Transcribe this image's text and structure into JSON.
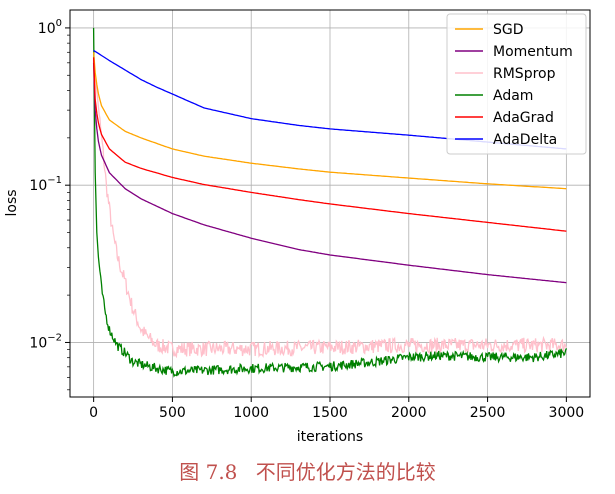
{
  "chart_data": {
    "type": "line",
    "xlabel": "iterations",
    "ylabel": "loss",
    "y_scale": "log",
    "xlim": [
      -150,
      3150
    ],
    "ylim": [
      0.0045,
      1.3
    ],
    "x_ticks": [
      0,
      500,
      1000,
      1500,
      2000,
      2500,
      3000
    ],
    "y_ticks": [
      0.01,
      0.1,
      1
    ],
    "y_tick_labels": [
      {
        "base": "10",
        "exp": "−2"
      },
      {
        "base": "10",
        "exp": "−1"
      },
      {
        "base": "10",
        "exp": "0"
      }
    ],
    "grid": true,
    "legend_position": "top-right",
    "series": [
      {
        "name": "SGD",
        "color": "#ffa500",
        "noise": 0,
        "x": [
          0,
          10,
          25,
          50,
          100,
          200,
          300,
          500,
          700,
          1000,
          1300,
          1500,
          2000,
          2500,
          3000
        ],
        "y": [
          0.7,
          0.52,
          0.4,
          0.32,
          0.26,
          0.22,
          0.2,
          0.17,
          0.153,
          0.138,
          0.127,
          0.121,
          0.111,
          0.102,
          0.095
        ]
      },
      {
        "name": "Momentum",
        "color": "#800080",
        "noise": 0,
        "x": [
          0,
          10,
          25,
          50,
          100,
          200,
          300,
          500,
          700,
          1000,
          1300,
          1500,
          2000,
          2500,
          3000
        ],
        "y": [
          0.6,
          0.3,
          0.2,
          0.155,
          0.12,
          0.095,
          0.082,
          0.066,
          0.056,
          0.046,
          0.039,
          0.036,
          0.031,
          0.027,
          0.024
        ]
      },
      {
        "name": "RMSprop",
        "color": "#ffc0cb",
        "noise": 0.11,
        "x": [
          0,
          20,
          40,
          60,
          80,
          100,
          120,
          150,
          200,
          250,
          300,
          350,
          400,
          500,
          700,
          1000,
          1500,
          2000,
          2500,
          3000
        ],
        "y": [
          0.6,
          0.4,
          0.25,
          0.16,
          0.1,
          0.07,
          0.05,
          0.035,
          0.024,
          0.016,
          0.012,
          0.0105,
          0.0095,
          0.009,
          0.009,
          0.009,
          0.0092,
          0.0095,
          0.0095,
          0.0095
        ]
      },
      {
        "name": "Adam",
        "color": "#008000",
        "noise": 0.07,
        "x": [
          0,
          10,
          20,
          30,
          50,
          70,
          100,
          150,
          200,
          250,
          300,
          400,
          500,
          700,
          1000,
          1500,
          1800,
          2000,
          2200,
          2500,
          2800,
          3000
        ],
        "y": [
          1.0,
          0.12,
          0.05,
          0.035,
          0.022,
          0.016,
          0.012,
          0.0095,
          0.0085,
          0.0075,
          0.0072,
          0.0068,
          0.0065,
          0.0066,
          0.0068,
          0.007,
          0.0075,
          0.008,
          0.0082,
          0.008,
          0.008,
          0.0085
        ]
      },
      {
        "name": "AdaGrad",
        "color": "#ff0000",
        "noise": 0,
        "x": [
          0,
          10,
          25,
          50,
          100,
          200,
          300,
          500,
          700,
          1000,
          1300,
          1500,
          2000,
          2500,
          3000
        ],
        "y": [
          0.65,
          0.35,
          0.26,
          0.21,
          0.17,
          0.14,
          0.128,
          0.112,
          0.101,
          0.09,
          0.081,
          0.076,
          0.066,
          0.058,
          0.051
        ]
      },
      {
        "name": "AdaDelta",
        "color": "#0000ff",
        "noise": 0,
        "x": [
          0,
          100,
          200,
          300,
          400,
          500,
          700,
          1000,
          1300,
          1500,
          2000,
          2500,
          3000
        ],
        "y": [
          0.72,
          0.62,
          0.54,
          0.47,
          0.42,
          0.38,
          0.31,
          0.265,
          0.24,
          0.228,
          0.208,
          0.188,
          0.17
        ]
      }
    ]
  },
  "caption": {
    "label": "图 7.8",
    "text": "不同优化方法的比较"
  }
}
